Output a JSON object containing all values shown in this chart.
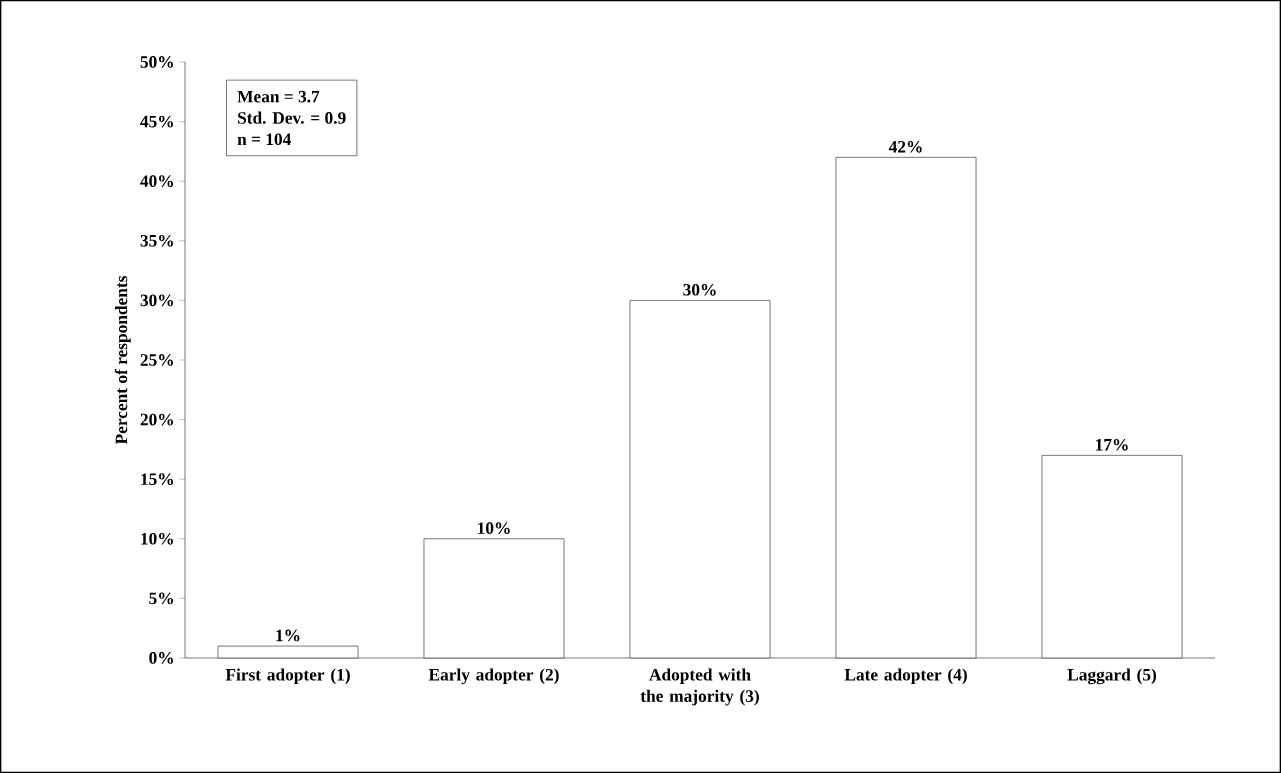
{
  "chart_data": {
    "type": "bar",
    "ylabel": "Percent of respondents",
    "categories": [
      "First adopter (1)",
      "Early adopter (2)",
      "Adopted with the majority (3)",
      "Late adopter (4)",
      "Laggard (5)"
    ],
    "values": [
      1,
      10,
      30,
      42,
      17
    ],
    "value_labels": [
      "1%",
      "10%",
      "30%",
      "42%",
      "17%"
    ],
    "color": "#ffffff",
    "ylim": [
      0,
      50
    ],
    "yticks": [
      {
        "value": 0,
        "label": "0%"
      },
      {
        "value": 5,
        "label": "5%"
      },
      {
        "value": 10,
        "label": "10%"
      },
      {
        "value": 15,
        "label": "15%"
      },
      {
        "value": 20,
        "label": "20%"
      },
      {
        "value": 25,
        "label": "25%"
      },
      {
        "value": 30,
        "label": "30%"
      },
      {
        "value": 35,
        "label": "35%"
      },
      {
        "value": 40,
        "label": "40%"
      },
      {
        "value": 45,
        "label": "45%"
      },
      {
        "value": 50,
        "label": "50%"
      }
    ],
    "annotations": [
      "Mean = 3.7",
      "Std. Dev. = 0.9",
      "n = 104"
    ]
  }
}
